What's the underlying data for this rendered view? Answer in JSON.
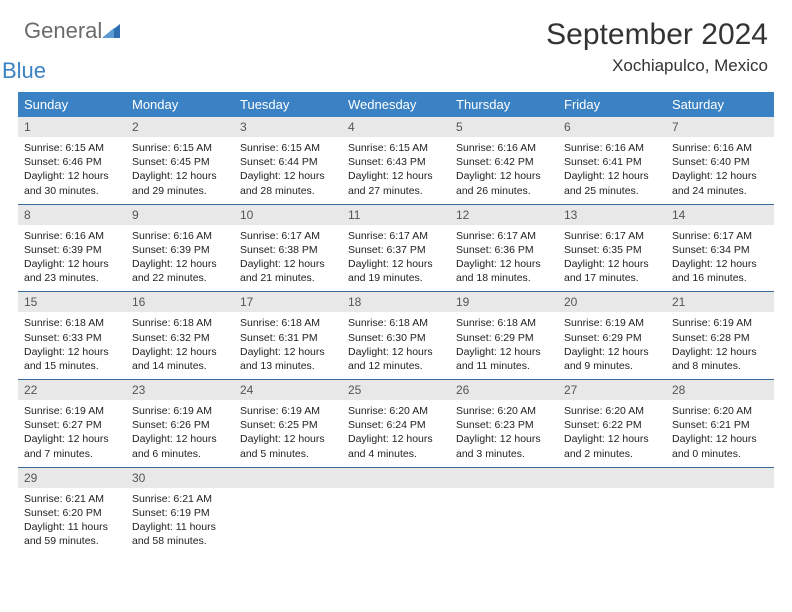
{
  "logo": {
    "text1": "General",
    "text2": "Blue"
  },
  "title": "September 2024",
  "location": "Xochiapulco, Mexico",
  "colors": {
    "header_bg": "#3b82c4",
    "header_text": "#ffffff",
    "daynum_bg": "#e8e8e8",
    "row_border": "#3b6a9a",
    "logo_gray": "#6b6b6b",
    "logo_blue": "#3b82c4"
  },
  "weekdays": [
    "Sunday",
    "Monday",
    "Tuesday",
    "Wednesday",
    "Thursday",
    "Friday",
    "Saturday"
  ],
  "weeks": [
    [
      {
        "n": "1",
        "sr": "6:15 AM",
        "ss": "6:46 PM",
        "dl": "12 hours and 30 minutes."
      },
      {
        "n": "2",
        "sr": "6:15 AM",
        "ss": "6:45 PM",
        "dl": "12 hours and 29 minutes."
      },
      {
        "n": "3",
        "sr": "6:15 AM",
        "ss": "6:44 PM",
        "dl": "12 hours and 28 minutes."
      },
      {
        "n": "4",
        "sr": "6:15 AM",
        "ss": "6:43 PM",
        "dl": "12 hours and 27 minutes."
      },
      {
        "n": "5",
        "sr": "6:16 AM",
        "ss": "6:42 PM",
        "dl": "12 hours and 26 minutes."
      },
      {
        "n": "6",
        "sr": "6:16 AM",
        "ss": "6:41 PM",
        "dl": "12 hours and 25 minutes."
      },
      {
        "n": "7",
        "sr": "6:16 AM",
        "ss": "6:40 PM",
        "dl": "12 hours and 24 minutes."
      }
    ],
    [
      {
        "n": "8",
        "sr": "6:16 AM",
        "ss": "6:39 PM",
        "dl": "12 hours and 23 minutes."
      },
      {
        "n": "9",
        "sr": "6:16 AM",
        "ss": "6:39 PM",
        "dl": "12 hours and 22 minutes."
      },
      {
        "n": "10",
        "sr": "6:17 AM",
        "ss": "6:38 PM",
        "dl": "12 hours and 21 minutes."
      },
      {
        "n": "11",
        "sr": "6:17 AM",
        "ss": "6:37 PM",
        "dl": "12 hours and 19 minutes."
      },
      {
        "n": "12",
        "sr": "6:17 AM",
        "ss": "6:36 PM",
        "dl": "12 hours and 18 minutes."
      },
      {
        "n": "13",
        "sr": "6:17 AM",
        "ss": "6:35 PM",
        "dl": "12 hours and 17 minutes."
      },
      {
        "n": "14",
        "sr": "6:17 AM",
        "ss": "6:34 PM",
        "dl": "12 hours and 16 minutes."
      }
    ],
    [
      {
        "n": "15",
        "sr": "6:18 AM",
        "ss": "6:33 PM",
        "dl": "12 hours and 15 minutes."
      },
      {
        "n": "16",
        "sr": "6:18 AM",
        "ss": "6:32 PM",
        "dl": "12 hours and 14 minutes."
      },
      {
        "n": "17",
        "sr": "6:18 AM",
        "ss": "6:31 PM",
        "dl": "12 hours and 13 minutes."
      },
      {
        "n": "18",
        "sr": "6:18 AM",
        "ss": "6:30 PM",
        "dl": "12 hours and 12 minutes."
      },
      {
        "n": "19",
        "sr": "6:18 AM",
        "ss": "6:29 PM",
        "dl": "12 hours and 11 minutes."
      },
      {
        "n": "20",
        "sr": "6:19 AM",
        "ss": "6:29 PM",
        "dl": "12 hours and 9 minutes."
      },
      {
        "n": "21",
        "sr": "6:19 AM",
        "ss": "6:28 PM",
        "dl": "12 hours and 8 minutes."
      }
    ],
    [
      {
        "n": "22",
        "sr": "6:19 AM",
        "ss": "6:27 PM",
        "dl": "12 hours and 7 minutes."
      },
      {
        "n": "23",
        "sr": "6:19 AM",
        "ss": "6:26 PM",
        "dl": "12 hours and 6 minutes."
      },
      {
        "n": "24",
        "sr": "6:19 AM",
        "ss": "6:25 PM",
        "dl": "12 hours and 5 minutes."
      },
      {
        "n": "25",
        "sr": "6:20 AM",
        "ss": "6:24 PM",
        "dl": "12 hours and 4 minutes."
      },
      {
        "n": "26",
        "sr": "6:20 AM",
        "ss": "6:23 PM",
        "dl": "12 hours and 3 minutes."
      },
      {
        "n": "27",
        "sr": "6:20 AM",
        "ss": "6:22 PM",
        "dl": "12 hours and 2 minutes."
      },
      {
        "n": "28",
        "sr": "6:20 AM",
        "ss": "6:21 PM",
        "dl": "12 hours and 0 minutes."
      }
    ],
    [
      {
        "n": "29",
        "sr": "6:21 AM",
        "ss": "6:20 PM",
        "dl": "11 hours and 59 minutes."
      },
      {
        "n": "30",
        "sr": "6:21 AM",
        "ss": "6:19 PM",
        "dl": "11 hours and 58 minutes."
      },
      null,
      null,
      null,
      null,
      null
    ]
  ],
  "labels": {
    "sunrise": "Sunrise:",
    "sunset": "Sunset:",
    "daylight": "Daylight:"
  }
}
